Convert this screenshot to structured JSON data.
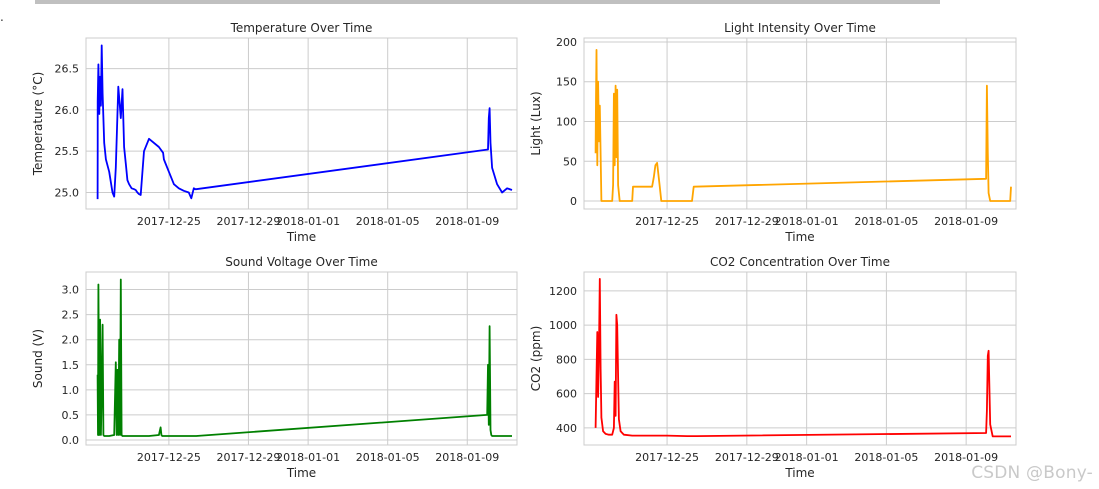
{
  "page": {
    "watermark": "CSDN @Bony-",
    "corner_mark": "."
  },
  "chart_data": [
    {
      "type": "line",
      "title": "Temperature Over Time",
      "xlabel": "Time",
      "ylabel": "Temperature (°C)",
      "color": "#0000ff",
      "grid": true,
      "xlim": [
        "2017-12-20T20:00",
        "2018-01-11T12:00"
      ],
      "ylim": [
        24.8,
        26.87
      ],
      "yticks": [
        25.0,
        25.5,
        26.0,
        26.5
      ],
      "ytick_labels": [
        "25.0",
        "25.5",
        "26.0",
        "26.5"
      ],
      "xticks": [
        "2017-12-25",
        "2017-12-29",
        "2018-01-01",
        "2018-01-05",
        "2018-01-09"
      ],
      "xtick_labels": [
        "2017-12-25",
        "2017-12-29",
        "2018-01-01",
        "2018-01-05",
        "2018-01-09"
      ],
      "x": [
        "2017-12-21T10:00",
        "2017-12-21T10:05",
        "2017-12-21T10:10",
        "2017-12-21T11:00",
        "2017-12-21T12:00",
        "2017-12-21T13:00",
        "2017-12-21T14:00",
        "2017-12-21T15:00",
        "2017-12-21T16:00",
        "2017-12-21T18:00",
        "2017-12-21T20:00",
        "2017-12-22T00:00",
        "2017-12-22T04:00",
        "2017-12-22T06:00",
        "2017-12-22T08:00",
        "2017-12-22T11:00",
        "2017-12-22T14:00",
        "2017-12-22T16:00",
        "2017-12-22T18:00",
        "2017-12-22T20:00",
        "2017-12-22T22:00",
        "2017-12-23T00:00",
        "2017-12-23T03:00",
        "2017-12-23T06:00",
        "2017-12-23T08:00",
        "2017-12-23T10:00",
        "2017-12-23T12:00",
        "2017-12-23T14:00",
        "2017-12-23T18:00",
        "2017-12-24T00:00",
        "2017-12-24T12:00",
        "2017-12-24T17:00",
        "2017-12-24T18:00",
        "2017-12-24T20:00",
        "2017-12-25T00:00",
        "2017-12-25T06:00",
        "2017-12-25T12:00",
        "2017-12-25T18:00",
        "2017-12-26T00:00",
        "2017-12-26T03:00",
        "2017-12-26T06:00",
        "2017-12-26T08:00",
        "2017-12-26T09:00",
        "2018-01-10T01:00",
        "2018-01-10T02:00",
        "2018-01-10T03:00",
        "2018-01-10T04:00",
        "2018-01-10T06:00",
        "2018-01-10T12:00",
        "2018-01-10T18:00",
        "2018-01-11T00:00",
        "2018-01-11T06:00"
      ],
      "y": [
        24.92,
        25.55,
        26.1,
        26.55,
        25.95,
        26.4,
        26.05,
        26.78,
        26.2,
        25.6,
        25.4,
        25.25,
        25.0,
        24.95,
        25.3,
        26.28,
        25.9,
        26.25,
        25.55,
        25.35,
        25.15,
        25.1,
        25.05,
        25.04,
        25.03,
        25.0,
        24.98,
        24.97,
        25.5,
        25.65,
        25.55,
        25.48,
        25.4,
        25.35,
        25.25,
        25.1,
        25.05,
        25.02,
        25.0,
        24.93,
        25.05,
        25.04,
        25.04,
        25.52,
        25.9,
        26.02,
        25.6,
        25.3,
        25.1,
        25.0,
        25.05,
        25.03
      ]
    },
    {
      "type": "line",
      "title": "Light Intensity Over Time",
      "xlabel": "Time",
      "ylabel": "Light (Lux)",
      "color": "#ffa500",
      "grid": true,
      "xlim": [
        "2017-12-20T20:00",
        "2018-01-11T12:00"
      ],
      "ylim": [
        -10,
        205
      ],
      "yticks": [
        0,
        50,
        100,
        150,
        200
      ],
      "ytick_labels": [
        "0",
        "50",
        "100",
        "150",
        "200"
      ],
      "xticks": [
        "2017-12-25",
        "2017-12-29",
        "2018-01-01",
        "2018-01-05",
        "2018-01-09"
      ],
      "xtick_labels": [
        "2017-12-25",
        "2017-12-29",
        "2018-01-01",
        "2018-01-05",
        "2018-01-09"
      ],
      "x": [
        "2017-12-21T10:00",
        "2017-12-21T10:30",
        "2017-12-21T11:00",
        "2017-12-21T12:00",
        "2017-12-21T13:00",
        "2017-12-21T14:00",
        "2017-12-21T15:00",
        "2017-12-21T17:00",
        "2017-12-21T19:00",
        "2017-12-22T06:00",
        "2017-12-22T07:00",
        "2017-12-22T08:00",
        "2017-12-22T09:00",
        "2017-12-22T10:00",
        "2017-12-22T11:00",
        "2017-12-22T12:00",
        "2017-12-22T13:00",
        "2017-12-22T15:00",
        "2017-12-22T17:00",
        "2017-12-23T06:00",
        "2017-12-23T07:00",
        "2017-12-23T09:00",
        "2017-12-24T06:00",
        "2017-12-24T08:00",
        "2017-12-24T10:00",
        "2017-12-24T12:00",
        "2017-12-24T15:00",
        "2017-12-24T17:00",
        "2017-12-25T06:00",
        "2017-12-25T08:00",
        "2017-12-25T10:00",
        "2017-12-26T06:00",
        "2017-12-26T08:00",
        "2018-01-10T00:00",
        "2018-01-10T01:00",
        "2018-01-10T02:00",
        "2018-01-10T03:00",
        "2018-01-10T05:00",
        "2018-01-11T00:00",
        "2018-01-11T05:00",
        "2018-01-11T06:00"
      ],
      "y": [
        60,
        130,
        190,
        45,
        150,
        75,
        120,
        0,
        0,
        0,
        20,
        135,
        45,
        145,
        55,
        140,
        20,
        0,
        0,
        0,
        18,
        18,
        18,
        30,
        45,
        48,
        20,
        0,
        0,
        0,
        0,
        0,
        18,
        28,
        145,
        60,
        10,
        0,
        0,
        0,
        18
      ]
    },
    {
      "type": "line",
      "title": "Sound Voltage Over Time",
      "xlabel": "Time",
      "ylabel": "Sound (V)",
      "color": "#008000",
      "grid": true,
      "xlim": [
        "2017-12-20T20:00",
        "2018-01-11T12:00"
      ],
      "ylim": [
        -0.1,
        3.35
      ],
      "yticks": [
        0.0,
        0.5,
        1.0,
        1.5,
        2.0,
        2.5,
        3.0
      ],
      "ytick_labels": [
        "0.0",
        "0.5",
        "1.0",
        "1.5",
        "2.0",
        "2.5",
        "3.0"
      ],
      "xticks": [
        "2017-12-25",
        "2017-12-29",
        "2018-01-01",
        "2018-01-05",
        "2018-01-09"
      ],
      "xtick_labels": [
        "2017-12-25",
        "2017-12-29",
        "2018-01-01",
        "2018-01-05",
        "2018-01-09"
      ],
      "x": [
        "2017-12-21T10:00",
        "2017-12-21T10:30",
        "2017-12-21T11:00",
        "2017-12-21T12:00",
        "2017-12-21T13:00",
        "2017-12-21T14:00",
        "2017-12-21T15:00",
        "2017-12-21T16:00",
        "2017-12-21T17:00",
        "2017-12-21T18:00",
        "2017-12-21T19:00",
        "2017-12-21T20:00",
        "2017-12-22T00:00",
        "2017-12-22T06:00",
        "2017-12-22T08:00",
        "2017-12-22T09:00",
        "2017-12-22T10:00",
        "2017-12-22T11:00",
        "2017-12-22T12:00",
        "2017-12-22T13:00",
        "2017-12-22T14:00",
        "2017-12-22T15:00",
        "2017-12-22T16:00",
        "2017-12-22T18:00",
        "2017-12-23T00:00",
        "2017-12-23T12:00",
        "2017-12-24T00:00",
        "2017-12-24T12:00",
        "2017-12-24T14:00",
        "2017-12-24T15:00",
        "2017-12-24T16:00",
        "2017-12-24T18:00",
        "2017-12-25T00:00",
        "2017-12-25T12:00",
        "2017-12-26T00:00",
        "2017-12-26T09:00",
        "2018-01-10T00:00",
        "2018-01-10T01:00",
        "2018-01-10T02:00",
        "2018-01-10T03:00",
        "2018-01-10T04:00",
        "2018-01-10T05:00",
        "2018-01-10T06:00",
        "2018-01-10T12:00",
        "2018-01-11T00:00",
        "2018-01-11T06:00"
      ],
      "y": [
        1.3,
        0.1,
        3.1,
        0.1,
        2.4,
        0.1,
        1.0,
        2.3,
        0.1,
        0.08,
        0.08,
        0.08,
        0.08,
        0.1,
        1.55,
        0.1,
        1.4,
        0.1,
        2.0,
        0.1,
        3.2,
        0.1,
        0.08,
        0.08,
        0.08,
        0.08,
        0.08,
        0.1,
        0.25,
        0.1,
        0.08,
        0.08,
        0.08,
        0.08,
        0.08,
        0.08,
        0.5,
        1.5,
        0.3,
        2.27,
        0.2,
        0.1,
        0.08,
        0.08,
        0.08,
        0.08
      ]
    },
    {
      "type": "line",
      "title": "CO2 Concentration Over Time",
      "xlabel": "Time",
      "ylabel": "CO2 (ppm)",
      "color": "#ff0000",
      "grid": true,
      "xlim": [
        "2017-12-20T20:00",
        "2018-01-11T12:00"
      ],
      "ylim": [
        300,
        1310
      ],
      "yticks": [
        400,
        600,
        800,
        1000,
        1200
      ],
      "ytick_labels": [
        "400",
        "600",
        "800",
        "1000",
        "1200"
      ],
      "xticks": [
        "2017-12-25",
        "2017-12-29",
        "2018-01-01",
        "2018-01-05",
        "2018-01-09"
      ],
      "xtick_labels": [
        "2017-12-25",
        "2017-12-29",
        "2018-01-01",
        "2018-01-05",
        "2018-01-09"
      ],
      "x": [
        "2017-12-21T10:00",
        "2017-12-21T11:00",
        "2017-12-21T12:00",
        "2017-12-21T13:00",
        "2017-12-21T14:00",
        "2017-12-21T15:00",
        "2017-12-21T16:00",
        "2017-12-21T17:00",
        "2017-12-21T19:00",
        "2017-12-21T22:00",
        "2017-12-22T02:00",
        "2017-12-22T06:00",
        "2017-12-22T08:00",
        "2017-12-22T09:00",
        "2017-12-22T10:00",
        "2017-12-22T11:00",
        "2017-12-22T12:00",
        "2017-12-22T13:00",
        "2017-12-22T14:00",
        "2017-12-22T16:00",
        "2017-12-22T20:00",
        "2017-12-23T06:00",
        "2017-12-24T00:00",
        "2017-12-25T00:00",
        "2017-12-26T00:00",
        "2017-12-26T12:00",
        "2018-01-10T00:00",
        "2018-01-10T01:00",
        "2018-01-10T02:00",
        "2018-01-10T03:00",
        "2018-01-10T05:00",
        "2018-01-10T08:00",
        "2018-01-11T00:00",
        "2018-01-11T06:00"
      ],
      "y": [
        400,
        700,
        960,
        580,
        870,
        1270,
        750,
        460,
        380,
        365,
        360,
        360,
        400,
        670,
        470,
        1060,
        1000,
        700,
        450,
        380,
        360,
        355,
        355,
        355,
        352,
        352,
        370,
        500,
        820,
        850,
        420,
        350,
        350,
        350
      ]
    }
  ]
}
